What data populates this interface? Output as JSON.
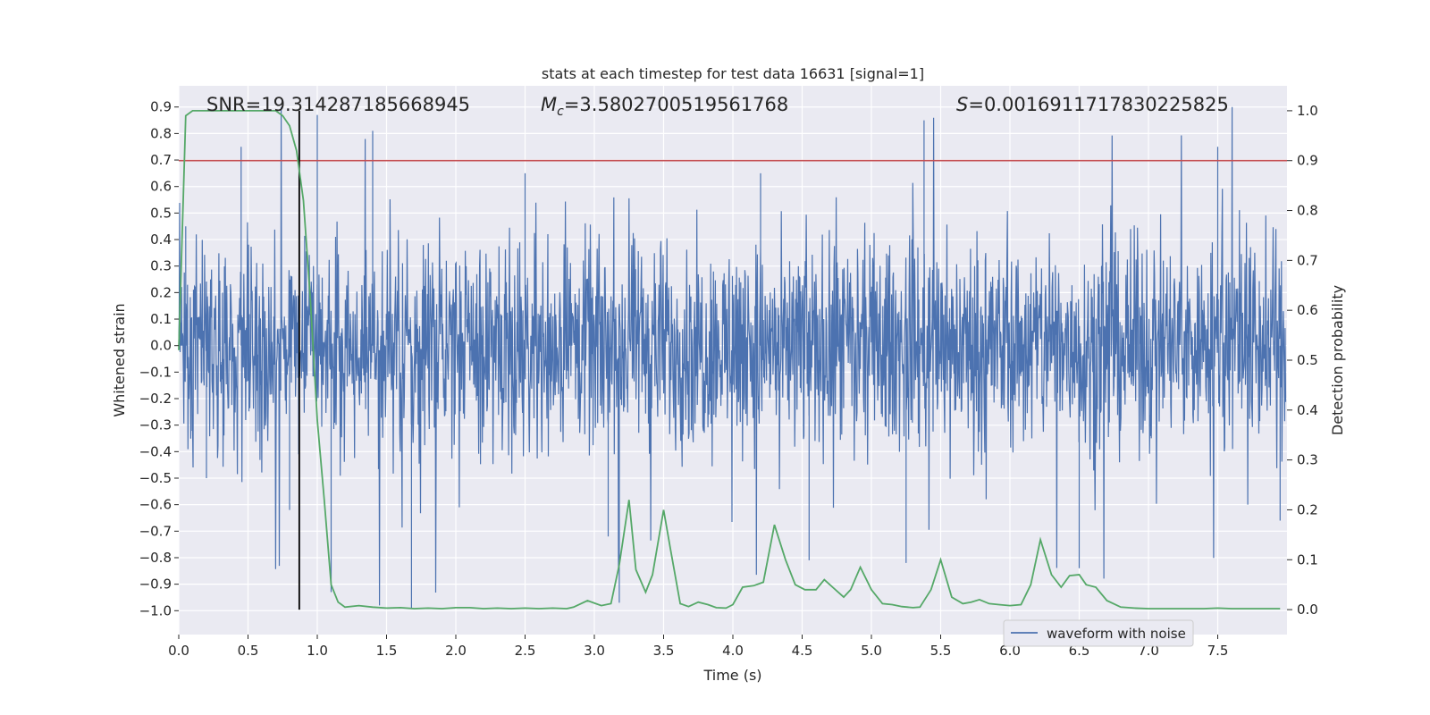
{
  "chart_data": {
    "type": "line",
    "title": "stats at each timestep for test data 16631 [signal=1]",
    "xlabel": "Time (s)",
    "ylabel_left": "Whitened strain",
    "ylabel_right": "Detection probability",
    "xlim": [
      0.0,
      8.0
    ],
    "ylim_left": [
      -1.09,
      0.98
    ],
    "ylim_right": [
      -0.05,
      1.05
    ],
    "x_ticks": [
      "0.0",
      "0.5",
      "1.0",
      "1.5",
      "2.0",
      "2.5",
      "3.0",
      "3.5",
      "4.0",
      "4.5",
      "5.0",
      "5.5",
      "6.0",
      "6.5",
      "7.0",
      "7.5"
    ],
    "x_tick_values": [
      0.0,
      0.5,
      1.0,
      1.5,
      2.0,
      2.5,
      3.0,
      3.5,
      4.0,
      4.5,
      5.0,
      5.5,
      6.0,
      6.5,
      7.0,
      7.5
    ],
    "y_ticks_left": [
      "0.9",
      "0.8",
      "0.7",
      "0.6",
      "0.5",
      "0.4",
      "0.3",
      "0.2",
      "0.1",
      "0.0",
      "−0.1",
      "−0.2",
      "−0.3",
      "−0.4",
      "−0.5",
      "−0.6",
      "−0.7",
      "−0.8",
      "−0.9",
      "−1.0"
    ],
    "y_tick_values_left": [
      0.9,
      0.8,
      0.7,
      0.6,
      0.5,
      0.4,
      0.3,
      0.2,
      0.1,
      0.0,
      -0.1,
      -0.2,
      -0.3,
      -0.4,
      -0.5,
      -0.6,
      -0.7,
      -0.8,
      -0.9,
      -1.0
    ],
    "y_ticks_right": [
      "1.0",
      "0.9",
      "0.8",
      "0.7",
      "0.6",
      "0.5",
      "0.4",
      "0.3",
      "0.2",
      "0.1",
      "0.0"
    ],
    "y_tick_values_right": [
      1.0,
      0.9,
      0.8,
      0.7,
      0.6,
      0.5,
      0.4,
      0.3,
      0.2,
      0.1,
      0.0
    ],
    "annotations": {
      "snr": "SNR=19.314287185668945",
      "mc_symbol": "M",
      "mc_sub": "c",
      "mc_value": "=3.5802700519561768",
      "s_symbol": "S",
      "s_value": "=0.0016911717830225825"
    },
    "threshold_probability": 0.9,
    "peak_time": 0.87,
    "legend": {
      "label": "waveform with noise",
      "placement": "lower right"
    },
    "grid": true,
    "series": [
      {
        "name": "waveform with noise",
        "axis": "left",
        "style": "dense noise",
        "x_range": [
          0.0,
          7.99
        ],
        "sample_points": [
          [
            0.05,
            0.45
          ],
          [
            0.2,
            -0.5
          ],
          [
            0.45,
            0.75
          ],
          [
            0.8,
            -0.62
          ],
          [
            1.0,
            0.87
          ],
          [
            1.1,
            -0.93
          ],
          [
            1.4,
            0.81
          ],
          [
            1.68,
            -0.99
          ],
          [
            2.5,
            0.65
          ],
          [
            3.1,
            -0.72
          ],
          [
            3.18,
            -0.97
          ],
          [
            4.2,
            0.65
          ],
          [
            4.55,
            -0.81
          ],
          [
            5.25,
            -0.82
          ],
          [
            5.38,
            0.85
          ],
          [
            6.5,
            -0.84
          ],
          [
            7.5,
            0.75
          ],
          [
            7.95,
            -0.66
          ]
        ]
      },
      {
        "name": "detection probability",
        "axis": "right",
        "color": "#55a868",
        "x": [
          0.0,
          0.05,
          0.1,
          0.2,
          0.3,
          0.4,
          0.5,
          0.6,
          0.7,
          0.75,
          0.8,
          0.85,
          0.9,
          0.95,
          1.0,
          1.05,
          1.1,
          1.15,
          1.2,
          1.3,
          1.4,
          1.5,
          1.6,
          1.7,
          1.8,
          1.9,
          2.0,
          2.1,
          2.2,
          2.3,
          2.4,
          2.5,
          2.6,
          2.7,
          2.8,
          2.85,
          2.95,
          3.05,
          3.12,
          3.18,
          3.25,
          3.3,
          3.37,
          3.42,
          3.5,
          3.55,
          3.62,
          3.68,
          3.75,
          3.82,
          3.88,
          3.95,
          4.0,
          4.07,
          4.15,
          4.22,
          4.3,
          4.38,
          4.45,
          4.52,
          4.6,
          4.66,
          4.72,
          4.8,
          4.85,
          4.92,
          5.0,
          5.08,
          5.15,
          5.22,
          5.3,
          5.35,
          5.43,
          5.5,
          5.58,
          5.66,
          5.72,
          5.78,
          5.85,
          5.92,
          6.0,
          6.08,
          6.15,
          6.22,
          6.3,
          6.37,
          6.43,
          6.5,
          6.55,
          6.62,
          6.7,
          6.8,
          6.9,
          7.0,
          7.1,
          7.2,
          7.3,
          7.4,
          7.5,
          7.6,
          7.7,
          7.8,
          7.95
        ],
        "y": [
          0.52,
          0.99,
          1.0,
          1.0,
          1.0,
          1.0,
          1.0,
          1.0,
          1.0,
          0.99,
          0.97,
          0.92,
          0.82,
          0.62,
          0.38,
          0.22,
          0.05,
          0.015,
          0.005,
          0.008,
          0.005,
          0.003,
          0.004,
          0.002,
          0.003,
          0.002,
          0.004,
          0.004,
          0.002,
          0.003,
          0.002,
          0.003,
          0.002,
          0.003,
          0.002,
          0.005,
          0.018,
          0.008,
          0.012,
          0.09,
          0.22,
          0.08,
          0.035,
          0.07,
          0.2,
          0.12,
          0.012,
          0.006,
          0.015,
          0.01,
          0.004,
          0.003,
          0.01,
          0.045,
          0.048,
          0.055,
          0.17,
          0.1,
          0.05,
          0.04,
          0.04,
          0.06,
          0.045,
          0.025,
          0.04,
          0.085,
          0.04,
          0.012,
          0.01,
          0.006,
          0.004,
          0.005,
          0.04,
          0.1,
          0.025,
          0.012,
          0.015,
          0.02,
          0.012,
          0.01,
          0.008,
          0.01,
          0.05,
          0.14,
          0.07,
          0.045,
          0.068,
          0.07,
          0.05,
          0.045,
          0.018,
          0.005,
          0.003,
          0.002,
          0.002,
          0.002,
          0.002,
          0.002,
          0.003,
          0.002,
          0.002,
          0.002,
          0.002
        ]
      }
    ],
    "colors": {
      "background": "#eaeaf2",
      "grid": "#ffffff",
      "noise": "#4c72b0",
      "probability": "#55a868",
      "threshold": "#c44e52",
      "peak_marker": "#000000"
    }
  }
}
